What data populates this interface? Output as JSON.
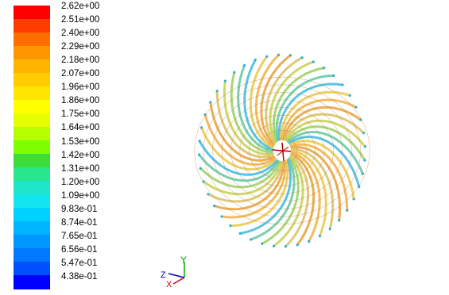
{
  "colorbar": {
    "labels": [
      "2.62e+00",
      "2.51e+00",
      "2.40e+00",
      "2.29e+00",
      "2.18e+00",
      "2.07e+00",
      "1.96e+00",
      "1.86e+00",
      "1.75e+00",
      "1.64e+00",
      "1.53e+00",
      "1.42e+00",
      "1.31e+00",
      "1.20e+00",
      "1.09e+00",
      "9.83e-01",
      "8.74e-01",
      "7.65e-01",
      "6.56e-01",
      "5.47e-01",
      "4.38e-01"
    ],
    "colors": [
      "#ff0000",
      "#ff3c00",
      "#ff6e00",
      "#ff9600",
      "#ffb400",
      "#ffcc00",
      "#ffe600",
      "#ffff00",
      "#e6ff00",
      "#b4ff00",
      "#7dff00",
      "#3cdc3c",
      "#28e68c",
      "#1ee6c8",
      "#14e6f0",
      "#00d2ff",
      "#00b4ff",
      "#0096ff",
      "#0078ff",
      "#0050ff",
      "#0000ff"
    ]
  },
  "axis_triad": {
    "x_label": "X",
    "y_label": "Y",
    "z_label": "Z"
  }
}
